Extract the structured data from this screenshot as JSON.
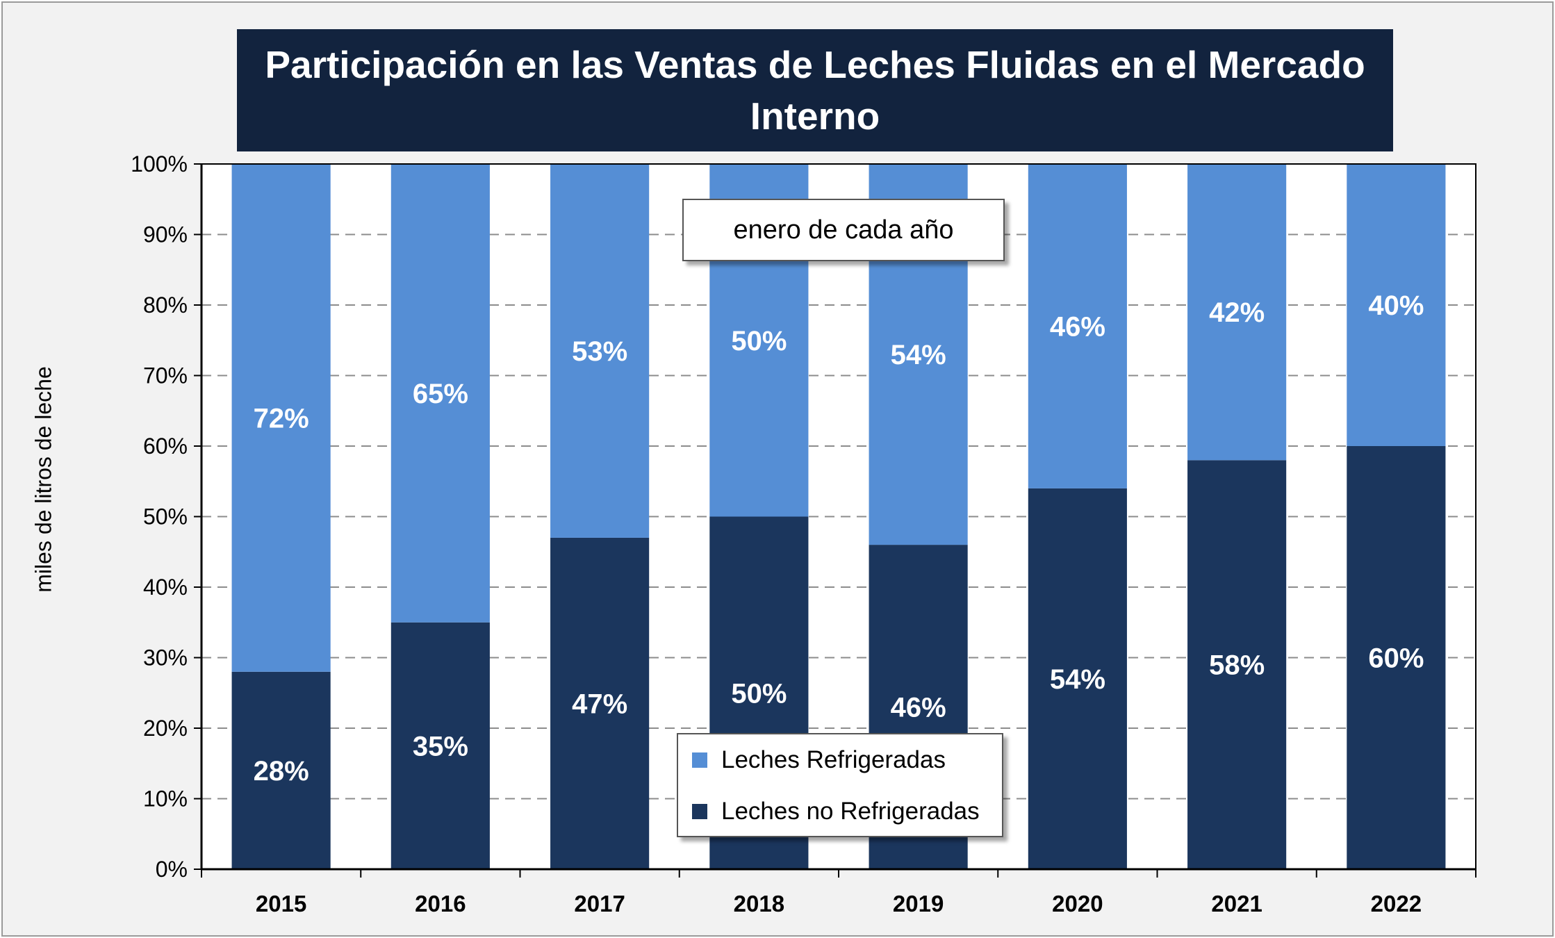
{
  "chart_data": {
    "type": "bar",
    "stacked": true,
    "title": "Participación en las Ventas de Leches Fluidas en el Mercado Interno",
    "ylabel": "miles de litros de leche",
    "annotation": "enero de cada año",
    "categories": [
      "2015",
      "2016",
      "2017",
      "2018",
      "2019",
      "2020",
      "2021",
      "2022"
    ],
    "y_ticks": [
      "0%",
      "10%",
      "20%",
      "30%",
      "40%",
      "50%",
      "60%",
      "70%",
      "80%",
      "90%",
      "100%"
    ],
    "ylim": [
      0,
      100
    ],
    "grid": "horizontal dashed",
    "legend_position": "bottom-center",
    "series": [
      {
        "name": "Leches no Refrigeradas",
        "color": "#1b365d",
        "values": [
          28,
          35,
          47,
          50,
          46,
          54,
          58,
          60
        ],
        "labels": [
          "28%",
          "35%",
          "47%",
          "50%",
          "46%",
          "54%",
          "58%",
          "60%"
        ]
      },
      {
        "name": "Leches Refrigeradas",
        "color": "#558ed5",
        "values": [
          72,
          65,
          53,
          50,
          54,
          46,
          42,
          40
        ],
        "labels": [
          "72%",
          "65%",
          "53%",
          "50%",
          "54%",
          "46%",
          "42%",
          "40%"
        ]
      }
    ]
  }
}
